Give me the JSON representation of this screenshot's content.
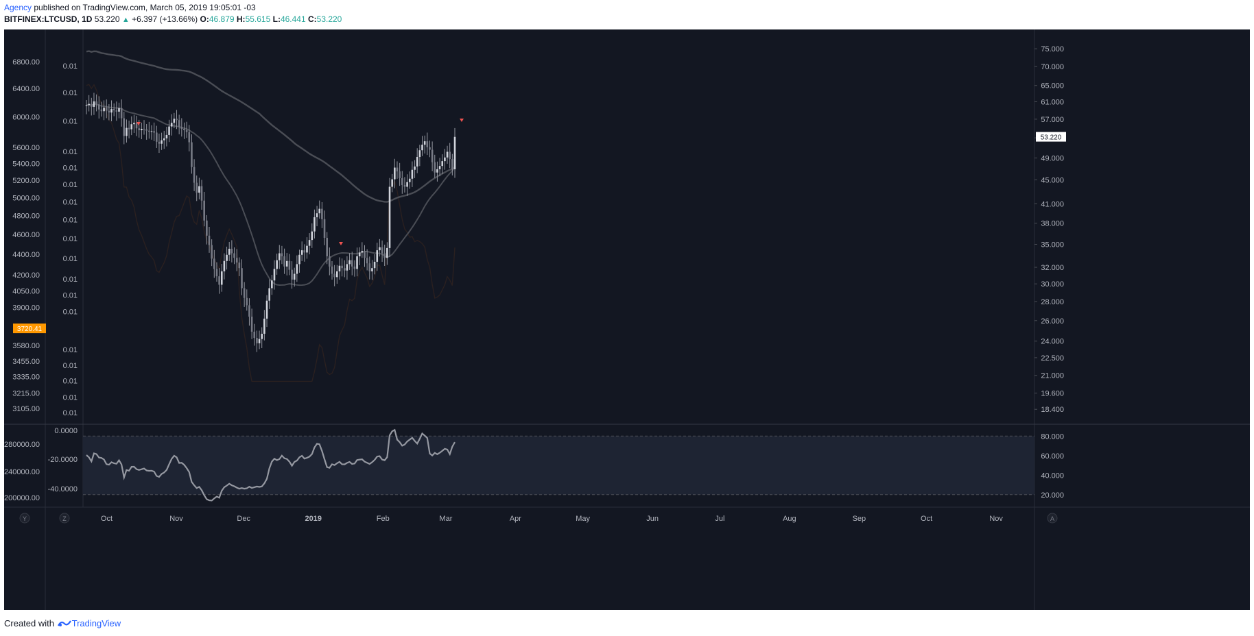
{
  "header": {
    "author": "Agency",
    "published": " published on TradingView.com, March 05, 2019 19:05:01 -03",
    "symbol": "BITFINEX:LTCUSD, 1D",
    "last": "53.220",
    "change": "+6.397 (+13.66%)",
    "o_label": "O:",
    "o_value": "46.879",
    "h_label": "H:",
    "h_value": "55.615",
    "l_label": "L:",
    "l_value": "46.441",
    "c_label": "C:",
    "c_value": "53.220"
  },
  "footer": {
    "created_with": "Created with",
    "brand": "TradingView"
  },
  "colors": {
    "background": "#131722",
    "candle": "#d1d4dc",
    "wick": "#9598a1",
    "ma": "#4a4d55",
    "overlay": "#2a2020",
    "rsi_line": "#9598a1",
    "rsi_band": "#1e2433",
    "price_tag": "#ffffff",
    "left_tag": "#ff9800",
    "marker": "#ef5350"
  },
  "chart_data": {
    "type": "candlestick",
    "x_ticks": [
      "Oct",
      "Nov",
      "Dec",
      "2019",
      "Feb",
      "Mar",
      "Apr",
      "May",
      "Jun",
      "Jul",
      "Aug",
      "Sep",
      "Oct",
      "Nov"
    ],
    "y_right_ticks": [
      "75.000",
      "70.000",
      "65.000",
      "61.000",
      "57.000",
      "53.000",
      "49.000",
      "45.000",
      "41.000",
      "38.000",
      "35.000",
      "32.000",
      "30.000",
      "28.000",
      "26.000",
      "24.000",
      "22.500",
      "21.000",
      "19.600",
      "18.400"
    ],
    "y_right_ticks_values": [
      75,
      70,
      65,
      61,
      57,
      53,
      49,
      45,
      41,
      38,
      35,
      32,
      30,
      28,
      26,
      24,
      22.5,
      21,
      19.6,
      18.4
    ],
    "y_left_ticks": [
      "6800.00",
      "6400.00",
      "6000.00",
      "5600.00",
      "5400.00",
      "5200.00",
      "5000.00",
      "4800.00",
      "4600.00",
      "4400.00",
      "4200.00",
      "4050.00",
      "3900.00",
      "3580.00",
      "3455.00",
      "3335.00",
      "3215.00",
      "3105.00"
    ],
    "y_left_ticks_values": [
      6800,
      6400,
      6000,
      5600,
      5400,
      5200,
      5000,
      4800,
      4600,
      4400,
      4200,
      4050,
      3900,
      3580,
      3455,
      3335,
      3215,
      3105
    ],
    "y_mid_ticks": [
      "0.01",
      "0.01",
      "0.01",
      "0.01",
      "0.01",
      "0.01",
      "0.01",
      "0.01",
      "0.01",
      "0.01",
      "0.01",
      "0.01",
      "0.01",
      "0.01",
      "0.01",
      "0.01",
      "0.01",
      "0.01"
    ],
    "y_scale": "log",
    "y_range": [
      17.5,
      80
    ],
    "left_tag": "3720.41",
    "price_tag": "53.220",
    "ohlc_close_series": {
      "name": "",
      "x_range": [
        "2018-09-22",
        "2019-03-05"
      ],
      "closes": [
        60.2,
        60.5,
        59.8,
        61.1,
        60.4,
        59.2,
        58.8,
        59.6,
        58.9,
        58.5,
        59.3,
        59.0,
        58.7,
        59.5,
        57.2,
        53.4,
        55.1,
        54.8,
        55.9,
        56.2,
        55.0,
        54.6,
        54.9,
        54.8,
        54.5,
        54.3,
        54.4,
        54.1,
        52.2,
        51.8,
        52.5,
        52.9,
        53.6,
        55.4,
        56.2,
        57.1,
        56.8,
        55.3,
        54.9,
        54.6,
        54.2,
        52.1,
        47.3,
        44.5,
        42.8,
        43.9,
        41.5,
        38.4,
        36.2,
        34.9,
        33.1,
        31.8,
        30.9,
        29.9,
        31.5,
        32.8,
        33.6,
        34.4,
        33.8,
        33.2,
        32.6,
        31.9,
        29.5,
        28.4,
        27.6,
        26.4,
        24.9,
        24.3,
        23.8,
        24.2,
        24.7,
        26.2,
        28.1,
        29.5,
        30.4,
        31.8,
        32.9,
        33.8,
        33.4,
        32.1,
        32.8,
        31.7,
        30.5,
        31.2,
        32.4,
        33.6,
        34.2,
        33.9,
        34.8,
        35.6,
        36.8,
        38.9,
        39.5,
        40.2,
        38.6,
        35.9,
        33.4,
        32.1,
        31.2,
        30.8,
        31.5,
        32.2,
        31.9,
        31.6,
        32.4,
        32.9,
        32.1,
        31.8,
        33.4,
        33.9,
        34.1,
        33.2,
        32.5,
        31.5,
        31.9,
        32.7,
        34.2,
        34.6,
        33.8,
        33.2,
        34.5,
        43.8,
        45.1,
        47.2,
        46.5,
        45.3,
        44.1,
        43.8,
        44.6,
        45.2,
        46.8,
        47.4,
        49.2,
        50.5,
        51.6,
        52.3,
        51.1,
        50.6,
        48.2,
        46.3,
        46.9,
        47.5,
        48.4,
        49.1,
        50.2,
        48.8,
        46.9,
        53.2
      ]
    },
    "sub_panel": {
      "type": "line",
      "y_left_ticks": [
        "0.0000",
        "-20.0000",
        "-40.0000"
      ],
      "y_left_ticks_values": [
        0,
        -20,
        -40
      ],
      "y_left2_ticks": [
        "280000.00",
        "240000.00",
        "200000.00"
      ],
      "y_right_ticks": [
        "80.000",
        "60.000",
        "40.000",
        "20.000"
      ],
      "y_right_ticks_values": [
        80,
        60,
        40,
        20
      ],
      "y_range": [
        10,
        90
      ],
      "band": [
        20,
        80
      ],
      "values": [
        60.5,
        58.2,
        54.1,
        62.3,
        61.5,
        58.0,
        57.6,
        56.0,
        51.2,
        50.6,
        53.2,
        52.1,
        51.6,
        55.2,
        51.0,
        37.6,
        45.2,
        44.5,
        48.5,
        48.6,
        46.0,
        45.3,
        46.0,
        46.8,
        44.8,
        44.4,
        44.5,
        43.6,
        39.1,
        38.2,
        41.2,
        42.6,
        45.3,
        51.2,
        56.6,
        59.8,
        58.2,
        52.4,
        52.6,
        50.5,
        47.2,
        43.1,
        33.1,
        29.6,
        26.7,
        28.0,
        24.6,
        19.4,
        15.3,
        14.2,
        13.9,
        16.2,
        18.1,
        16.9,
        24.0,
        27.6,
        29.3,
        31.2,
        29.6,
        28.6,
        27.2,
        26.1,
        26.8,
        26.1,
        26.5,
        28.2,
        26.9,
        27.6,
        28.3,
        27.9,
        28.4,
        31.6,
        36.2,
        47.0,
        53.8,
        56.8,
        55.3,
        56.4,
        60.0,
        57.2,
        56.5,
        53.8,
        49.6,
        53.5,
        54.9,
        58.3,
        59.8,
        56.9,
        57.7,
        58.9,
        61.6,
        68.3,
        72.1,
        71.6,
        64.7,
        56.3,
        48.2,
        47.5,
        51.1,
        50.3,
        52.2,
        53.6,
        51.1,
        51.0,
        52.5,
        53.5,
        51.4,
        51.8,
        55.4,
        55.9,
        56.2,
        53.8,
        52.6,
        51.4,
        53.2,
        55.6,
        59.0,
        59.4,
        56.0,
        55.2,
        58.4,
        80.7,
        84.9,
        86.3,
        76.3,
        73.8,
        70.1,
        71.3,
        74.4,
        76.3,
        78.2,
        75.0,
        72.3,
        77.2,
        82.6,
        80.4,
        78.0,
        62.1,
        60.1,
        62.8,
        61.4,
        62.9,
        64.8,
        67.0,
        66.2,
        61.5,
        69.1,
        73.8
      ]
    }
  }
}
